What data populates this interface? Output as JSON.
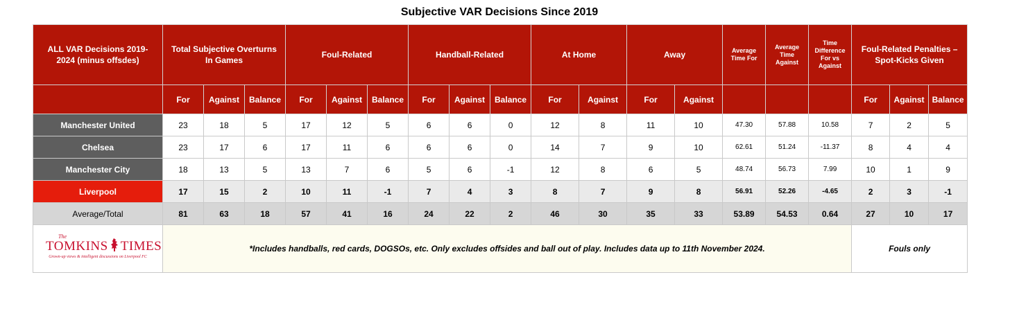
{
  "title": "Subjective VAR Decisions Since 2019",
  "header": {
    "corner": "ALL VAR Decisions 2019-2024 (minus offsdes)",
    "groups": {
      "total": "Total Subjective Overturns In Games",
      "foul": "Foul-Related",
      "handball": "Handball-Related",
      "home": "At Home",
      "away": "Away",
      "avg_for": "Average Time For",
      "avg_against": "Average Time Against",
      "time_diff": "Time Difference For vs Against",
      "penalties": "Foul-Related Penalties – Spot-Kicks Given"
    },
    "sub": {
      "for": "For",
      "against": "Against",
      "balance": "Balance"
    }
  },
  "rows": [
    {
      "team": "Manchester United",
      "values": [
        "23",
        "18",
        "5",
        "17",
        "12",
        "5",
        "6",
        "6",
        "0",
        "12",
        "8",
        "11",
        "10",
        "47.30",
        "57.88",
        "10.58",
        "7",
        "2",
        "5"
      ]
    },
    {
      "team": "Chelsea",
      "values": [
        "23",
        "17",
        "6",
        "17",
        "11",
        "6",
        "6",
        "6",
        "0",
        "14",
        "7",
        "9",
        "10",
        "62.61",
        "51.24",
        "-11.37",
        "8",
        "4",
        "4"
      ]
    },
    {
      "team": "Manchester City",
      "values": [
        "18",
        "13",
        "5",
        "13",
        "7",
        "6",
        "5",
        "6",
        "-1",
        "12",
        "8",
        "6",
        "5",
        "48.74",
        "56.73",
        "7.99",
        "10",
        "1",
        "9"
      ]
    },
    {
      "team": "Liverpool",
      "values": [
        "17",
        "15",
        "2",
        "10",
        "11",
        "-1",
        "7",
        "4",
        "3",
        "8",
        "7",
        "9",
        "8",
        "56.91",
        "52.26",
        "-4.65",
        "2",
        "3",
        "-1"
      ]
    },
    {
      "team": "Average/Total",
      "values": [
        "81",
        "63",
        "18",
        "57",
        "41",
        "16",
        "24",
        "22",
        "2",
        "46",
        "30",
        "35",
        "33",
        "53.89",
        "54.53",
        "0.64",
        "27",
        "10",
        "17"
      ]
    }
  ],
  "footer": {
    "logo_the": "The",
    "logo_main_left": "TOMKINS",
    "logo_main_right": "TIMES",
    "logo_tagline": "Grown-up views & intelligent discussions on Liverpool FC",
    "note": "*Includes handballs, red cards, DOGSOs, etc. Only excludes offsides and ball out of play. Includes data up to 11th November 2024.",
    "fouls_only": "Fouls only"
  },
  "colors": {
    "header_red": "#b31507",
    "team_grey": "#5e5e5e",
    "liverpool_red": "#e51d0c",
    "total_grey": "#d6d6d6",
    "note_bg": "#fdfcef",
    "logo_red": "#c8102e"
  },
  "icons": {
    "logo_bird": "liver-bird-icon"
  }
}
